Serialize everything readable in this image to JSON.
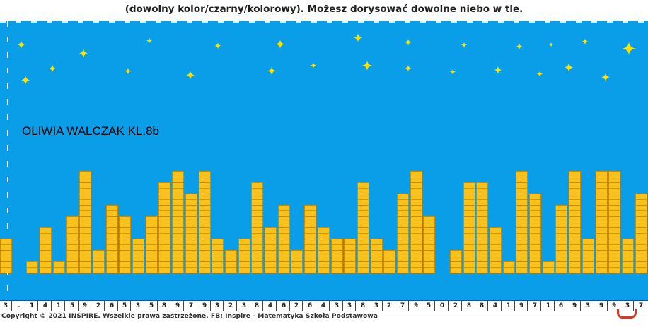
{
  "header": {
    "instruction": "(dowolny kolor/czarny/kolorowy). Możesz dorysować dowolne niebo w tle."
  },
  "artwork": {
    "author_label": "OLIWIA WALCZAK KL.8b",
    "digits": [
      "3",
      ".",
      "1",
      "4",
      "1",
      "5",
      "9",
      "2",
      "6",
      "5",
      "3",
      "5",
      "8",
      "9",
      "7",
      "9",
      "3",
      "2",
      "3",
      "8",
      "4",
      "6",
      "2",
      "6",
      "4",
      "3",
      "3",
      "8",
      "3",
      "2",
      "7",
      "9",
      "5",
      "0",
      "2",
      "8",
      "8",
      "4",
      "1",
      "9",
      "7",
      "1",
      "6",
      "9",
      "3",
      "9",
      "9",
      "3",
      "7"
    ],
    "colors": {
      "sky": "#0a9ee8",
      "stars": "#ffe100",
      "windows": "#f7c21a",
      "window_border": "#c98c00",
      "bracket": "#d2392a"
    }
  },
  "footer": {
    "copyright": "Copyright © 2021 INSPIRE. Wszelkie prawa zastrzeżone. FB: Inspire - Matematyka Szkoła Podstawowa"
  }
}
